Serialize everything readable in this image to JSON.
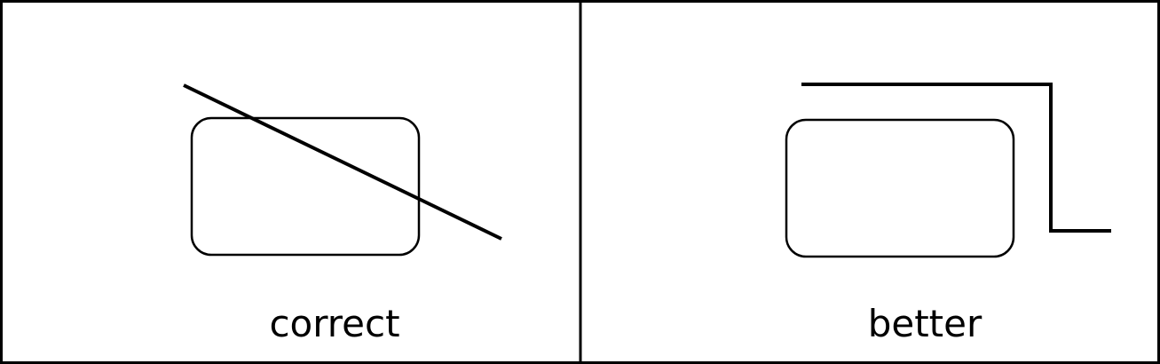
{
  "panels": [
    {
      "id": "left",
      "label": "correct"
    },
    {
      "id": "right",
      "label": "better"
    }
  ],
  "colors": {
    "stroke": "#000000",
    "background": "#ffffff"
  }
}
